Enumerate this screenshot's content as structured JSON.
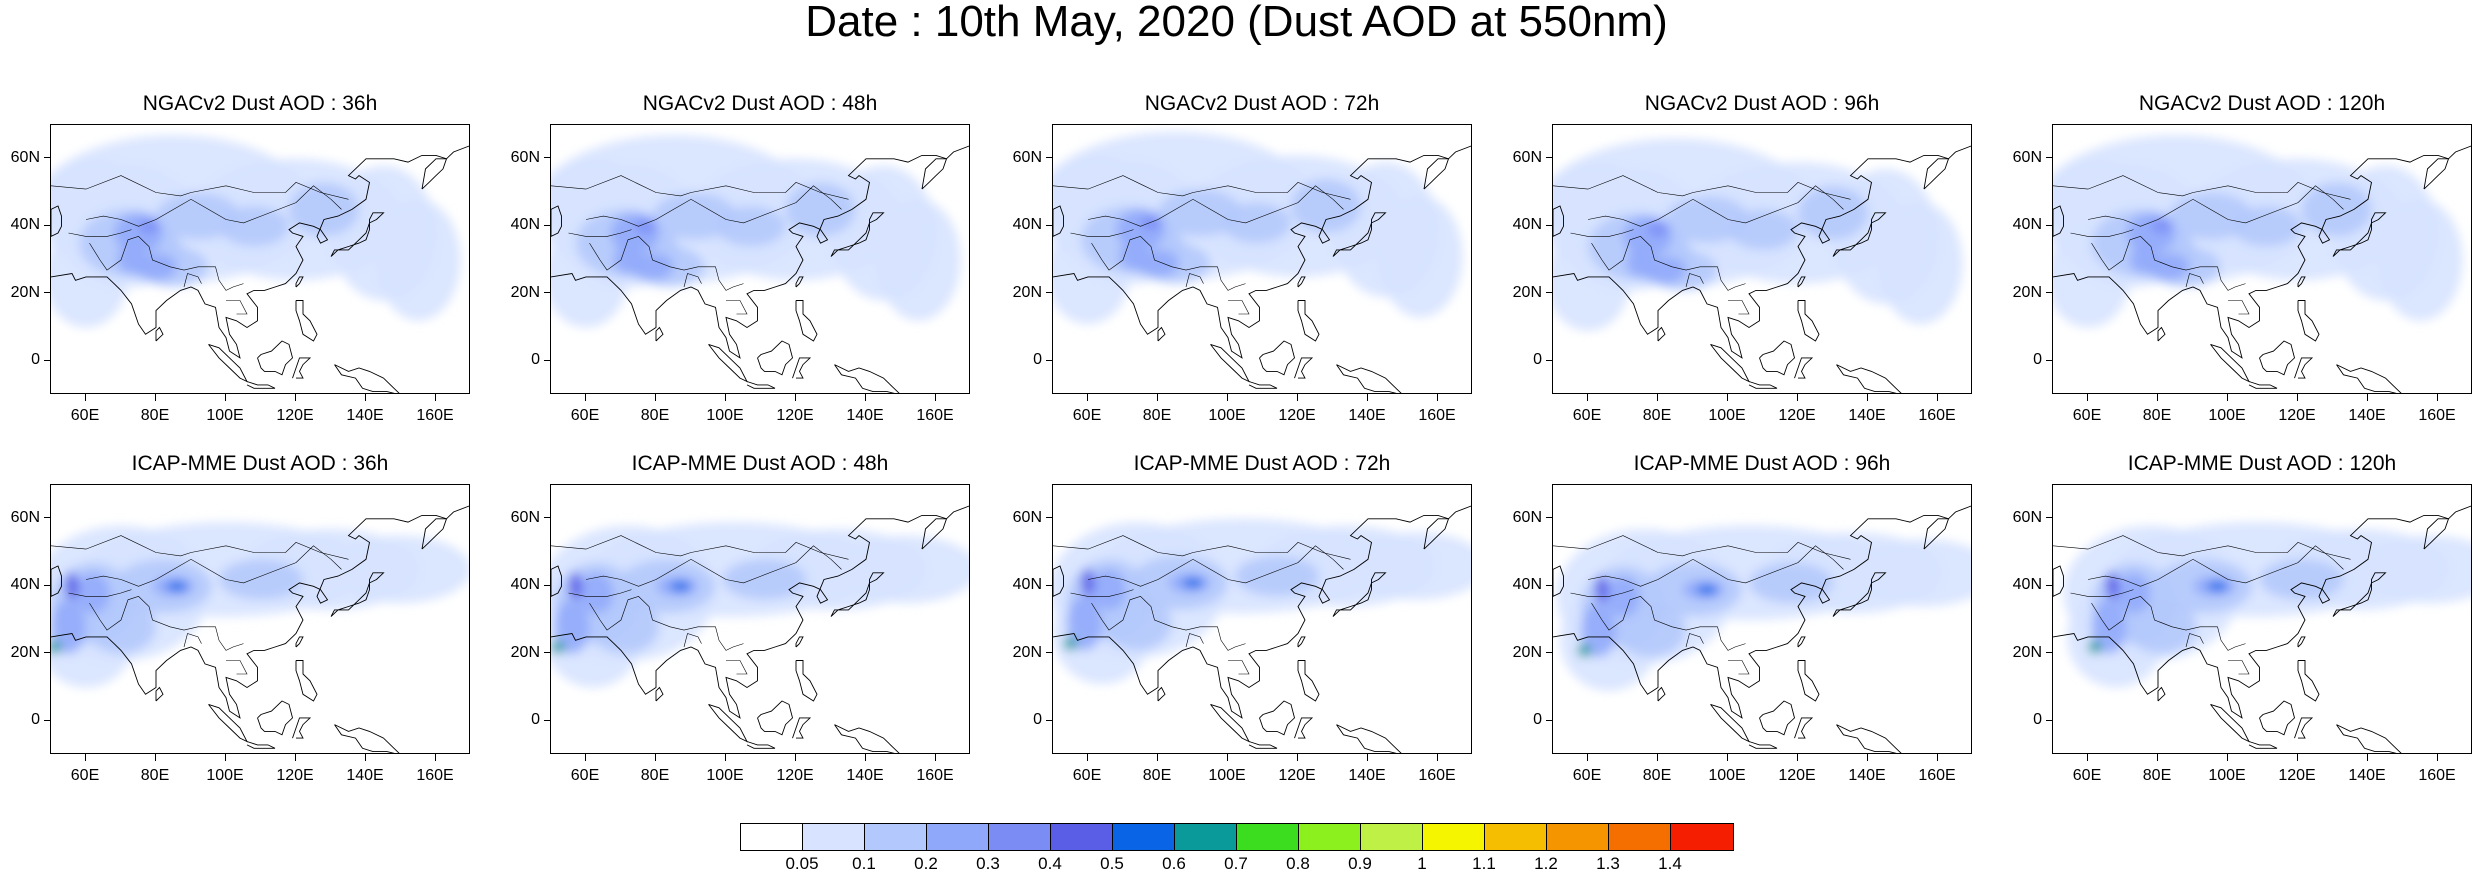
{
  "title": "Date : 10th May, 2020 (Dust AOD at 550nm)",
  "panels": [
    {
      "title": "NGACv2 Dust AOD : 36h"
    },
    {
      "title": "NGACv2 Dust AOD : 48h"
    },
    {
      "title": "NGACv2 Dust AOD : 72h"
    },
    {
      "title": "NGACv2 Dust AOD : 96h"
    },
    {
      "title": "NGACv2 Dust AOD : 120h"
    },
    {
      "title": "ICAP-MME Dust AOD : 36h"
    },
    {
      "title": "ICAP-MME Dust AOD : 48h"
    },
    {
      "title": "ICAP-MME Dust AOD : 72h"
    },
    {
      "title": "ICAP-MME Dust AOD : 96h"
    },
    {
      "title": "ICAP-MME Dust AOD : 120h"
    }
  ],
  "lat_ticks": [
    "60N",
    "40N",
    "20N",
    "0"
  ],
  "lat_values": [
    60,
    40,
    20,
    0
  ],
  "lon_ticks": [
    "60E",
    "80E",
    "100E",
    "120E",
    "140E",
    "160E"
  ],
  "lon_values": [
    60,
    80,
    100,
    120,
    140,
    160
  ],
  "map_extent": {
    "lon_min": 50,
    "lon_max": 170,
    "lat_min": -10,
    "lat_max": 70
  },
  "colorbar": {
    "labels": [
      "0.05",
      "0.1",
      "0.2",
      "0.3",
      "0.4",
      "0.5",
      "0.6",
      "0.7",
      "0.8",
      "0.9",
      "1",
      "1.1",
      "1.2",
      "1.3",
      "1.4"
    ],
    "colors": [
      "#ffffff",
      "#d7e3ff",
      "#b3c8fc",
      "#8fa8fa",
      "#7b8cf5",
      "#5a5ee6",
      "#0a64e6",
      "#0a9a9a",
      "#3cdc1e",
      "#8cf01e",
      "#bef046",
      "#f5f500",
      "#f5be00",
      "#f59600",
      "#f56e00",
      "#f51e00"
    ]
  }
}
